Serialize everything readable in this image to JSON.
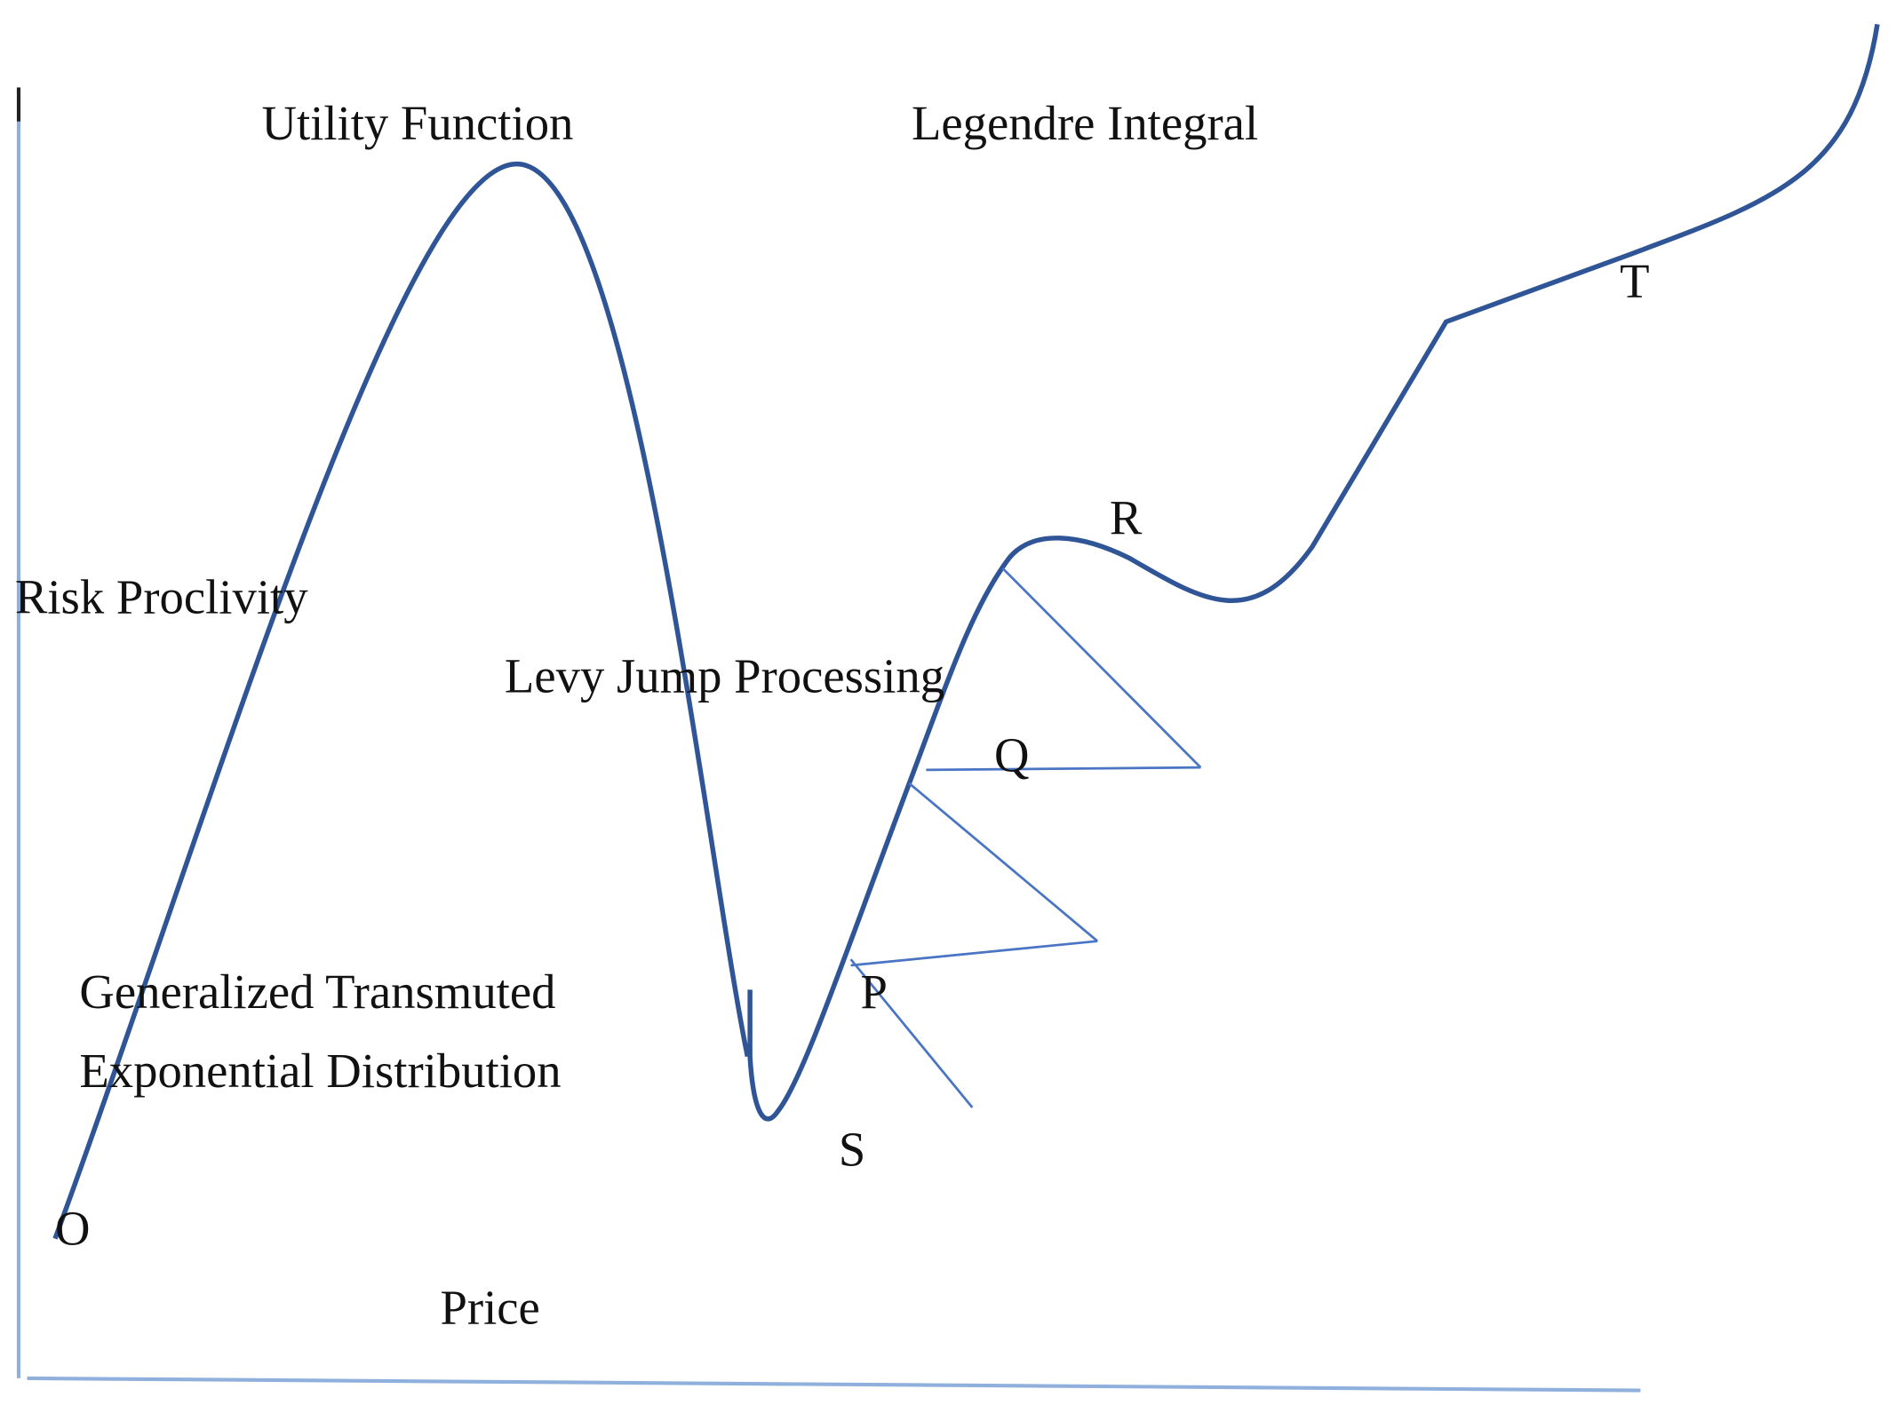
{
  "labels": {
    "utility": "Utility Function",
    "legendre": "Legendre Integral",
    "risk": "Risk Proclivity",
    "levy": "Levy Jump Processing",
    "gted_line1": "Generalized Transmuted",
    "gted_line2": "Exponential Distribution",
    "price": "Price"
  },
  "points": {
    "o": "O",
    "p": "P",
    "q": "Q",
    "r": "R",
    "s": "S",
    "t": "T"
  }
}
